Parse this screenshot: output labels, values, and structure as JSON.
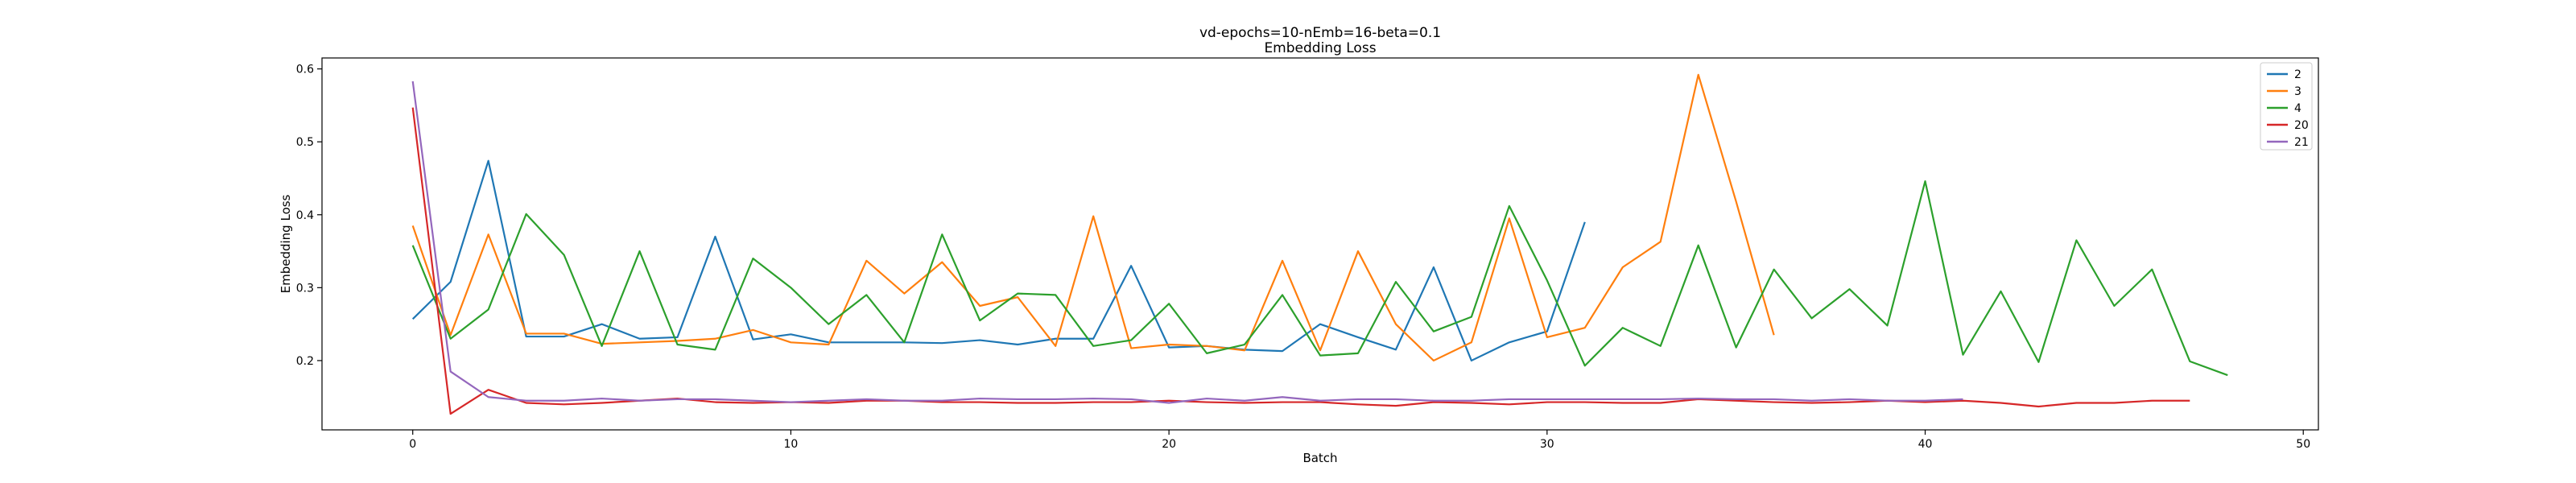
{
  "chart_data": {
    "type": "line",
    "title": "vd-epochs=10-nEmb=16-beta=0.1",
    "subtitle": "Embedding Loss",
    "xlabel": "Batch",
    "ylabel": "Embedding Loss",
    "xlim": [
      -2.4,
      50.4
    ],
    "ylim": [
      0.105,
      0.615
    ],
    "xticks": [
      0,
      10,
      20,
      30,
      40,
      50
    ],
    "yticks": [
      0.2,
      0.3,
      0.4,
      0.5,
      0.6
    ],
    "grid": false,
    "legend_position": "top-right",
    "series": [
      {
        "name": "2",
        "color": "#1f77b4",
        "values": [
          0.257,
          0.308,
          0.474,
          0.233,
          0.233,
          0.25,
          0.23,
          0.232,
          0.37,
          0.229,
          0.236,
          0.225,
          0.225,
          0.225,
          0.224,
          0.228,
          0.222,
          0.23,
          0.23,
          0.33,
          0.218,
          0.22,
          0.215,
          0.213,
          0.25,
          0.232,
          0.215,
          0.328,
          0.2,
          0.225,
          0.24,
          0.39
        ]
      },
      {
        "name": "3",
        "color": "#ff7f0e",
        "values": [
          0.385,
          0.235,
          0.373,
          0.237,
          0.237,
          0.223,
          0.225,
          0.227,
          0.23,
          0.242,
          0.225,
          0.222,
          0.337,
          0.292,
          0.335,
          0.275,
          0.287,
          0.22,
          0.398,
          0.217,
          0.222,
          0.22,
          0.214,
          0.337,
          0.214,
          0.35,
          0.25,
          0.2,
          0.225,
          0.395,
          0.232,
          0.245,
          0.328,
          0.363,
          0.592,
          0.418,
          0.235
        ]
      },
      {
        "name": "4",
        "color": "#2ca02c",
        "values": [
          0.358,
          0.23,
          0.27,
          0.401,
          0.345,
          0.22,
          0.35,
          0.222,
          0.215,
          0.34,
          0.3,
          0.25,
          0.29,
          0.225,
          0.373,
          0.255,
          0.292,
          0.29,
          0.22,
          0.228,
          0.278,
          0.21,
          0.222,
          0.29,
          0.207,
          0.21,
          0.308,
          0.24,
          0.26,
          0.412,
          0.31,
          0.193,
          0.245,
          0.22,
          0.358,
          0.218,
          0.325,
          0.258,
          0.298,
          0.248,
          0.446,
          0.208,
          0.295,
          0.198,
          0.365,
          0.275,
          0.325,
          0.199,
          0.18
        ]
      },
      {
        "name": "20",
        "color": "#d62728",
        "values": [
          0.547,
          0.127,
          0.16,
          0.142,
          0.14,
          0.142,
          0.145,
          0.148,
          0.143,
          0.142,
          0.143,
          0.142,
          0.145,
          0.145,
          0.143,
          0.143,
          0.142,
          0.142,
          0.143,
          0.143,
          0.145,
          0.143,
          0.142,
          0.143,
          0.143,
          0.14,
          0.138,
          0.143,
          0.142,
          0.14,
          0.143,
          0.143,
          0.142,
          0.142,
          0.147,
          0.145,
          0.143,
          0.142,
          0.143,
          0.145,
          0.143,
          0.145,
          0.142,
          0.137,
          0.142,
          0.142,
          0.145,
          0.145
        ]
      },
      {
        "name": "21",
        "color": "#9467bd",
        "values": [
          0.583,
          0.185,
          0.15,
          0.145,
          0.145,
          0.148,
          0.145,
          0.147,
          0.147,
          0.145,
          0.143,
          0.145,
          0.147,
          0.145,
          0.145,
          0.148,
          0.147,
          0.147,
          0.148,
          0.147,
          0.142,
          0.148,
          0.145,
          0.15,
          0.145,
          0.147,
          0.147,
          0.145,
          0.145,
          0.147,
          0.147,
          0.147,
          0.147,
          0.147,
          0.148,
          0.147,
          0.147,
          0.145,
          0.147,
          0.145,
          0.145,
          0.147
        ]
      }
    ]
  }
}
